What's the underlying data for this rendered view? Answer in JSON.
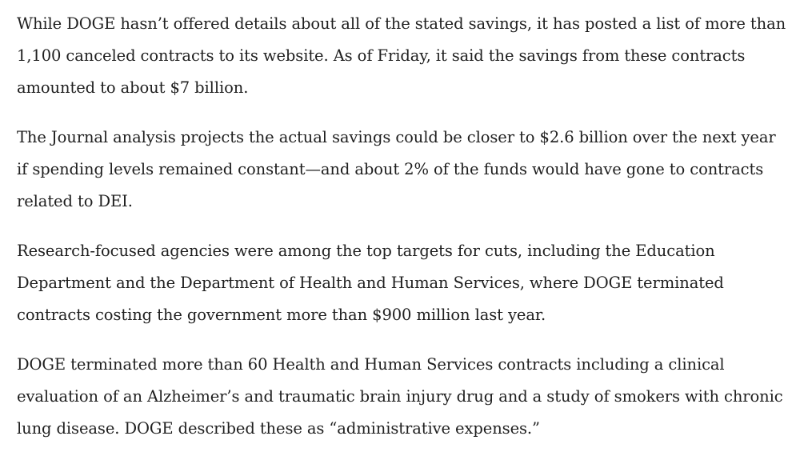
{
  "article": {
    "paragraphs": [
      "While DOGE hasn’t offered details about all of the stated savings, it has posted a list of more than 1,100 canceled contracts to its website. As of Friday, it said the savings from these contracts amounted to about $7 billion.",
      "The Journal analysis projects the actual savings could be closer to $2.6 billion over the next year if spending levels remained constant—and about 2% of the funds would have gone to contracts related to DEI.",
      "Research-focused agencies were among the top targets for cuts, including the Education Department and the Department of Health and Human Services, where DOGE terminated contracts costing the government more than $900 million last year.",
      "DOGE terminated more than 60 Health and Human Services contracts including a clinical evaluation of an Alzheimer’s and traumatic brain injury drug and a study of smokers with chronic lung disease. DOGE described these as “administrative expenses.”"
    ]
  }
}
